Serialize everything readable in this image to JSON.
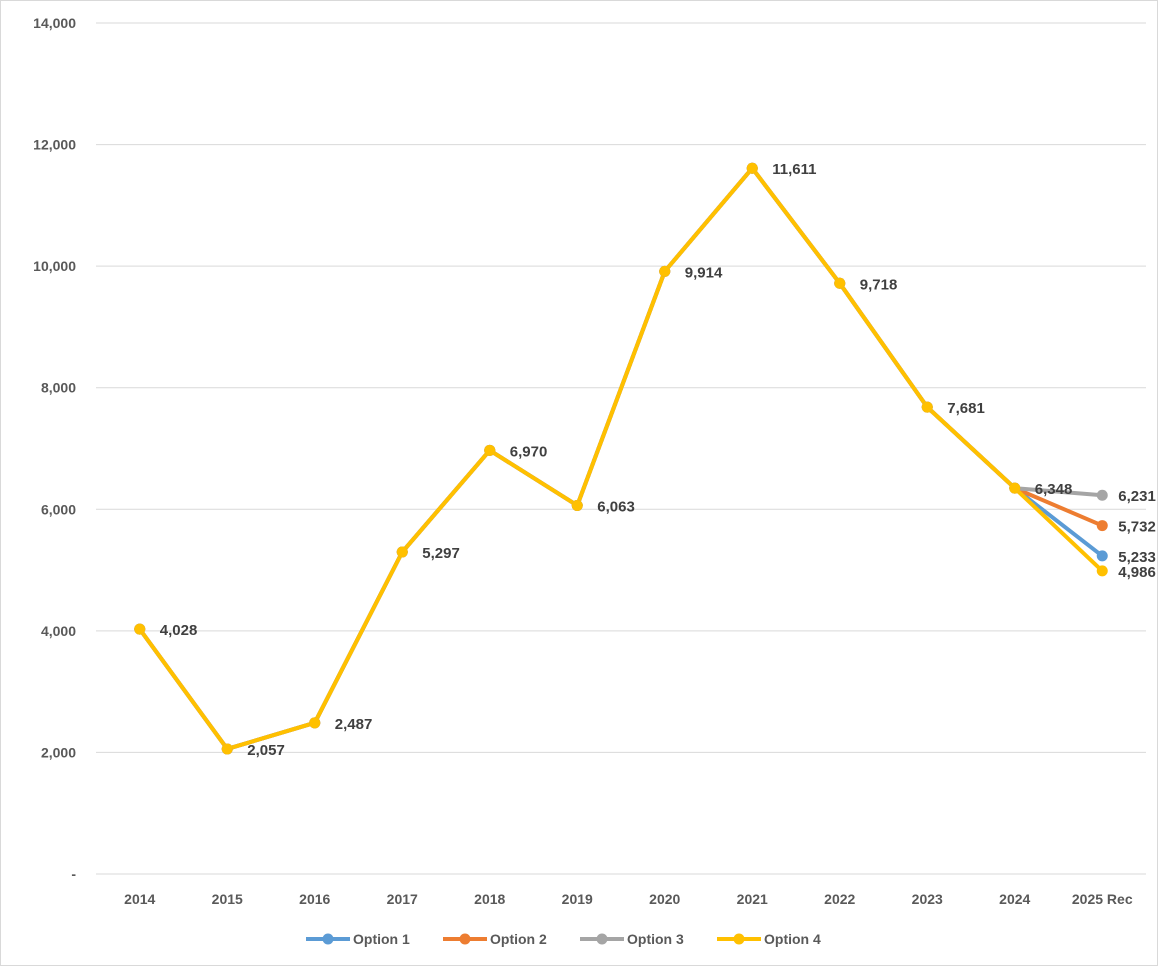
{
  "chart_data": {
    "type": "line",
    "title": "",
    "xlabel": "",
    "ylabel": "",
    "categories": [
      "2014",
      "2015",
      "2016",
      "2017",
      "2018",
      "2019",
      "2020",
      "2021",
      "2022",
      "2023",
      "2024",
      "2025 Rec"
    ],
    "y_tick_labels": [
      "-",
      "2,000",
      "4,000",
      "6,000",
      "8,000",
      "10,000",
      "12,000",
      "14,000"
    ],
    "y_tick_values": [
      0,
      2000,
      4000,
      6000,
      8000,
      10000,
      12000,
      14000
    ],
    "ylim": [
      0,
      14000
    ],
    "grid": true,
    "legend_position": "bottom",
    "series": [
      {
        "name": "Option 1",
        "color": "#5B9BD5",
        "values": [
          4028,
          2057,
          2487,
          5297,
          6970,
          6063,
          9914,
          11611,
          9718,
          7681,
          6348,
          5233
        ]
      },
      {
        "name": "Option 2",
        "color": "#ED7D31",
        "values": [
          4028,
          2057,
          2487,
          5297,
          6970,
          6063,
          9914,
          11611,
          9718,
          7681,
          6348,
          5732
        ]
      },
      {
        "name": "Option 3",
        "color": "#A5A5A5",
        "values": [
          4028,
          2057,
          2487,
          5297,
          6970,
          6063,
          9914,
          11611,
          9718,
          7681,
          6348,
          6231
        ]
      },
      {
        "name": "Option 4",
        "color": "#FFC000",
        "values": [
          4028,
          2057,
          2487,
          5297,
          6970,
          6063,
          9914,
          11611,
          9718,
          7681,
          6348,
          4986
        ]
      }
    ],
    "data_labels": [
      "4,028",
      "2,057",
      "2,487",
      "5,297",
      "6,970",
      "6,063",
      "9,914",
      "11,611",
      "9,718",
      "7,681",
      "6,348"
    ],
    "end_labels": [
      {
        "series": "Option 3",
        "text": "6,231"
      },
      {
        "series": "Option 2",
        "text": "5,732"
      },
      {
        "series": "Option 1",
        "text": "5,233"
      },
      {
        "series": "Option 4",
        "text": "4,986"
      }
    ]
  }
}
